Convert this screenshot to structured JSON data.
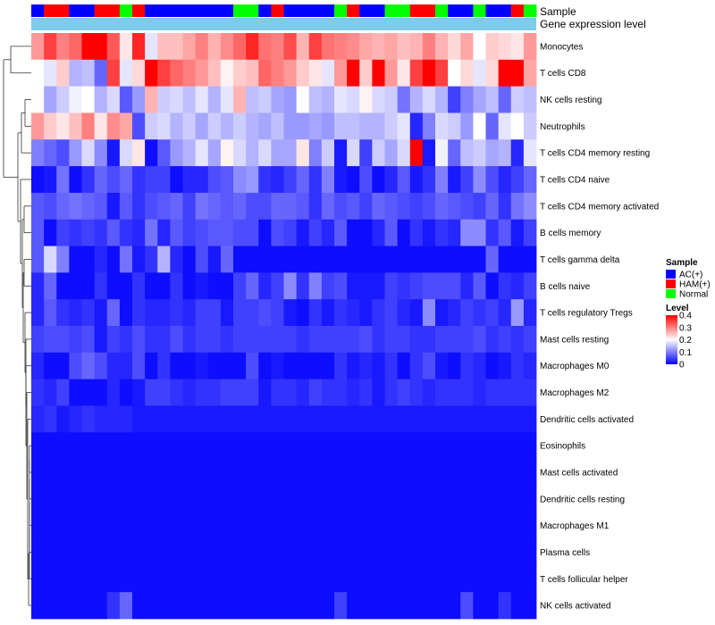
{
  "chart_data": {
    "type": "heatmap",
    "annotation_tracks": [
      "Sample",
      "Gene expression level"
    ],
    "sample_groups": [
      "A",
      "H",
      "H",
      "A",
      "A",
      "H",
      "H",
      "N",
      "H",
      "A",
      "A",
      "A",
      "A",
      "A",
      "A",
      "A",
      "N",
      "N",
      "A",
      "H",
      "A",
      "A",
      "A",
      "A",
      "N",
      "H",
      "A",
      "A",
      "N",
      "N",
      "H",
      "H",
      "N",
      "A",
      "A",
      "N",
      "A",
      "A",
      "H",
      "N"
    ],
    "gene_expression_color": "#7ecbec",
    "rows": [
      "Monocytes",
      "T cells CD8",
      "NK cells resting",
      "Neutrophils",
      "T cells CD4 memory resting",
      "T cells CD4 naive",
      "T cells CD4 memory activated",
      "B cells memory",
      "T cells gamma delta",
      "B cells naive",
      "T cells regulatory  Tregs",
      "Mast cells resting",
      "Macrophages M0",
      "Macrophages M2",
      "Dendritic cells activated",
      "Eosinophils",
      "Mast cells activated",
      "Dendritic cells resting",
      "Macrophages M1",
      "Plasma cells",
      "T cells follicular helper",
      "NK cells activated"
    ],
    "values": [
      [
        0.28,
        0.35,
        0.3,
        0.32,
        0.4,
        0.4,
        0.33,
        0.22,
        0.37,
        0.18,
        0.25,
        0.25,
        0.27,
        0.3,
        0.26,
        0.29,
        0.32,
        0.37,
        0.31,
        0.3,
        0.34,
        0.26,
        0.35,
        0.31,
        0.3,
        0.29,
        0.27,
        0.26,
        0.27,
        0.25,
        0.26,
        0.3,
        0.26,
        0.23,
        0.27,
        0.2,
        0.24,
        0.23,
        0.22,
        0.28
      ],
      [
        0.2,
        0.18,
        0.24,
        0.14,
        0.15,
        0.08,
        0.35,
        0.18,
        0.23,
        0.4,
        0.35,
        0.32,
        0.3,
        0.28,
        0.25,
        0.21,
        0.24,
        0.25,
        0.32,
        0.3,
        0.28,
        0.24,
        0.22,
        0.18,
        0.28,
        0.4,
        0.24,
        0.4,
        0.28,
        0.22,
        0.35,
        0.4,
        0.35,
        0.2,
        0.23,
        0.18,
        0.23,
        0.4,
        0.4,
        0.27
      ],
      [
        0.2,
        0.13,
        0.16,
        0.19,
        0.2,
        0.14,
        0.17,
        0.07,
        0.12,
        0.26,
        0.16,
        0.17,
        0.15,
        0.18,
        0.14,
        0.18,
        0.26,
        0.15,
        0.16,
        0.13,
        0.12,
        0.2,
        0.15,
        0.14,
        0.18,
        0.17,
        0.21,
        0.17,
        0.16,
        0.09,
        0.14,
        0.17,
        0.14,
        0.05,
        0.1,
        0.13,
        0.15,
        0.08,
        0.16,
        0.15
      ],
      [
        0.28,
        0.24,
        0.22,
        0.25,
        0.3,
        0.22,
        0.29,
        0.27,
        0.06,
        0.16,
        0.17,
        0.14,
        0.16,
        0.13,
        0.16,
        0.14,
        0.16,
        0.14,
        0.13,
        0.15,
        0.12,
        0.12,
        0.13,
        0.12,
        0.15,
        0.15,
        0.14,
        0.14,
        0.16,
        0.18,
        0.03,
        0.1,
        0.17,
        0.16,
        0.12,
        0.2,
        0.08,
        0.18,
        0.2,
        0.16
      ],
      [
        0.1,
        0.08,
        0.06,
        0.12,
        0.17,
        0.11,
        0.02,
        0.17,
        0.22,
        0.01,
        0.07,
        0.12,
        0.14,
        0.18,
        0.13,
        0.21,
        0.17,
        0.14,
        0.17,
        0.13,
        0.13,
        0.22,
        0.1,
        0.16,
        0.02,
        0.17,
        0.05,
        0.16,
        0.13,
        0.17,
        0.4,
        0.02,
        0.19,
        0.08,
        0.15,
        0.16,
        0.13,
        0.14,
        0.03,
        0.18
      ],
      [
        0.01,
        0.02,
        0.09,
        0.01,
        0.04,
        0.08,
        0.06,
        0.08,
        0.04,
        0.05,
        0.05,
        0.01,
        0.03,
        0.03,
        0.06,
        0.07,
        0.11,
        0.12,
        0.04,
        0.03,
        0.05,
        0.08,
        0.04,
        0.1,
        0.02,
        0.01,
        0.06,
        0.01,
        0.03,
        0.07,
        0.02,
        0.04,
        0.1,
        0.02,
        0.05,
        0.11,
        0.06,
        0.03,
        0.05,
        0.08
      ],
      [
        0.07,
        0.06,
        0.08,
        0.09,
        0.08,
        0.07,
        0.02,
        0.07,
        0.04,
        0.06,
        0.07,
        0.08,
        0.05,
        0.09,
        0.08,
        0.07,
        0.08,
        0.06,
        0.06,
        0.08,
        0.08,
        0.07,
        0.04,
        0.08,
        0.06,
        0.07,
        0.05,
        0.08,
        0.07,
        0.06,
        0.05,
        0.06,
        0.08,
        0.07,
        0.06,
        0.05,
        0.08,
        0.04,
        0.09,
        0.11
      ],
      [
        0.07,
        0.01,
        0.05,
        0.04,
        0.05,
        0.04,
        0.07,
        0.04,
        0.03,
        0.09,
        0.03,
        0.07,
        0.05,
        0.06,
        0.07,
        0.07,
        0.06,
        0.06,
        0.01,
        0.06,
        0.05,
        0.02,
        0.05,
        0.03,
        0.07,
        0.01,
        0.01,
        0.03,
        0.07,
        0.01,
        0.04,
        0.02,
        0.04,
        0.03,
        0.11,
        0.11,
        0.04,
        0.07,
        0.02,
        0.05
      ],
      [
        0.07,
        0.17,
        0.1,
        0.01,
        0.01,
        0.03,
        0.01,
        0.09,
        0.02,
        0.04,
        0.14,
        0.03,
        0.01,
        0.06,
        0.02,
        0.08,
        0.01,
        0.01,
        0.01,
        0.01,
        0.01,
        0.01,
        0.01,
        0.01,
        0.01,
        0.01,
        0.01,
        0.01,
        0.01,
        0.01,
        0.01,
        0.01,
        0.01,
        0.01,
        0.01,
        0.01,
        0.08,
        0.01,
        0.01,
        0.01
      ],
      [
        0.03,
        0.08,
        0.01,
        0.01,
        0.01,
        0.04,
        0.01,
        0.01,
        0.04,
        0.01,
        0.01,
        0.04,
        0.01,
        0.02,
        0.01,
        0.01,
        0.05,
        0.08,
        0.03,
        0.05,
        0.11,
        0.04,
        0.1,
        0.05,
        0.06,
        0.02,
        0.02,
        0.02,
        0.05,
        0.04,
        0.05,
        0.06,
        0.06,
        0.06,
        0.03,
        0.07,
        0.01,
        0.04,
        0.03,
        0.05
      ],
      [
        0.03,
        0.07,
        0.04,
        0.03,
        0.04,
        0.02,
        0.08,
        0.01,
        0.04,
        0.03,
        0.03,
        0.04,
        0.03,
        0.05,
        0.05,
        0.02,
        0.05,
        0.05,
        0.06,
        0.05,
        0.02,
        0.01,
        0.04,
        0.02,
        0.04,
        0.03,
        0.02,
        0.04,
        0.05,
        0.03,
        0.02,
        0.11,
        0.02,
        0.03,
        0.05,
        0.04,
        0.05,
        0.03,
        0.12,
        0.03
      ],
      [
        0.05,
        0.06,
        0.06,
        0.05,
        0.06,
        0.02,
        0.05,
        0.04,
        0.06,
        0.04,
        0.04,
        0.06,
        0.04,
        0.05,
        0.05,
        0.04,
        0.05,
        0.05,
        0.05,
        0.05,
        0.05,
        0.04,
        0.05,
        0.05,
        0.05,
        0.05,
        0.06,
        0.04,
        0.05,
        0.05,
        0.04,
        0.04,
        0.05,
        0.05,
        0.05,
        0.06,
        0.04,
        0.05,
        0.04,
        0.05
      ],
      [
        0.03,
        0.01,
        0.01,
        0.06,
        0.08,
        0.06,
        0.03,
        0.03,
        0.06,
        0.01,
        0.04,
        0.01,
        0.01,
        0.02,
        0.01,
        0.01,
        0.01,
        0.06,
        0.01,
        0.02,
        0.01,
        0.01,
        0.01,
        0.01,
        0.04,
        0.02,
        0.03,
        0.02,
        0.04,
        0.01,
        0.04,
        0.06,
        0.02,
        0.01,
        0.04,
        0.03,
        0.01,
        0.02,
        0.04,
        0.03
      ],
      [
        0.04,
        0.03,
        0.05,
        0.01,
        0.01,
        0.01,
        0.03,
        0.01,
        0.02,
        0.05,
        0.05,
        0.04,
        0.03,
        0.04,
        0.04,
        0.05,
        0.05,
        0.05,
        0.02,
        0.04,
        0.04,
        0.03,
        0.05,
        0.04,
        0.04,
        0.03,
        0.04,
        0.02,
        0.04,
        0.05,
        0.04,
        0.03,
        0.04,
        0.04,
        0.04,
        0.03,
        0.04,
        0.04,
        0.04,
        0.04
      ],
      [
        0.03,
        0.04,
        0.02,
        0.03,
        0.04,
        0.03,
        0.03,
        0.03,
        0.02,
        0.02,
        0.02,
        0.02,
        0.02,
        0.02,
        0.02,
        0.02,
        0.02,
        0.02,
        0.02,
        0.02,
        0.02,
        0.02,
        0.02,
        0.02,
        0.02,
        0.02,
        0.02,
        0.02,
        0.02,
        0.02,
        0.02,
        0.02,
        0.02,
        0.02,
        0.02,
        0.02,
        0.02,
        0.02,
        0.02,
        0.02
      ],
      [
        0.01,
        0.01,
        0.01,
        0.01,
        0.01,
        0.01,
        0.01,
        0.01,
        0.01,
        0.01,
        0.01,
        0.01,
        0.01,
        0.01,
        0.01,
        0.01,
        0.01,
        0.01,
        0.01,
        0.01,
        0.01,
        0.01,
        0.01,
        0.01,
        0.01,
        0.01,
        0.01,
        0.01,
        0.01,
        0.01,
        0.01,
        0.01,
        0.01,
        0.01,
        0.01,
        0.01,
        0.01,
        0.01,
        0.01,
        0.01
      ],
      [
        0.01,
        0.01,
        0.01,
        0.01,
        0.01,
        0.01,
        0.01,
        0.01,
        0.01,
        0.01,
        0.01,
        0.01,
        0.01,
        0.01,
        0.01,
        0.01,
        0.01,
        0.01,
        0.01,
        0.01,
        0.01,
        0.01,
        0.01,
        0.01,
        0.01,
        0.01,
        0.01,
        0.01,
        0.01,
        0.01,
        0.01,
        0.01,
        0.01,
        0.01,
        0.01,
        0.01,
        0.01,
        0.01,
        0.01,
        0.01
      ],
      [
        0.01,
        0.01,
        0.01,
        0.01,
        0.01,
        0.01,
        0.01,
        0.01,
        0.01,
        0.01,
        0.01,
        0.01,
        0.01,
        0.01,
        0.01,
        0.01,
        0.01,
        0.01,
        0.01,
        0.01,
        0.01,
        0.01,
        0.01,
        0.01,
        0.01,
        0.01,
        0.01,
        0.01,
        0.01,
        0.01,
        0.01,
        0.01,
        0.01,
        0.01,
        0.01,
        0.01,
        0.01,
        0.01,
        0.01,
        0.01
      ],
      [
        0.01,
        0.01,
        0.01,
        0.01,
        0.01,
        0.01,
        0.01,
        0.01,
        0.01,
        0.01,
        0.01,
        0.01,
        0.01,
        0.01,
        0.01,
        0.01,
        0.01,
        0.01,
        0.01,
        0.01,
        0.01,
        0.01,
        0.01,
        0.01,
        0.01,
        0.01,
        0.01,
        0.01,
        0.01,
        0.01,
        0.01,
        0.01,
        0.01,
        0.01,
        0.01,
        0.01,
        0.01,
        0.01,
        0.01,
        0.01
      ],
      [
        0.01,
        0.01,
        0.01,
        0.01,
        0.01,
        0.01,
        0.01,
        0.01,
        0.01,
        0.01,
        0.01,
        0.01,
        0.01,
        0.01,
        0.01,
        0.01,
        0.01,
        0.01,
        0.01,
        0.01,
        0.01,
        0.01,
        0.01,
        0.01,
        0.01,
        0.01,
        0.01,
        0.01,
        0.01,
        0.01,
        0.01,
        0.01,
        0.01,
        0.01,
        0.01,
        0.01,
        0.01,
        0.01,
        0.01,
        0.01
      ],
      [
        0.01,
        0.01,
        0.01,
        0.01,
        0.01,
        0.01,
        0.01,
        0.01,
        0.01,
        0.01,
        0.01,
        0.01,
        0.01,
        0.01,
        0.01,
        0.01,
        0.01,
        0.01,
        0.01,
        0.01,
        0.01,
        0.01,
        0.01,
        0.01,
        0.01,
        0.01,
        0.01,
        0.01,
        0.01,
        0.01,
        0.01,
        0.01,
        0.01,
        0.01,
        0.01,
        0.01,
        0.01,
        0.01,
        0.01,
        0.01
      ],
      [
        0.01,
        0.01,
        0.01,
        0.01,
        0.01,
        0.01,
        0.04,
        0.08,
        0.01,
        0.01,
        0.01,
        0.01,
        0.01,
        0.01,
        0.01,
        0.01,
        0.01,
        0.01,
        0.01,
        0.01,
        0.01,
        0.01,
        0.01,
        0.01,
        0.05,
        0.01,
        0.01,
        0.01,
        0.01,
        0.01,
        0.01,
        0.01,
        0.01,
        0.01,
        0.06,
        0.01,
        0.01,
        0.04,
        0.01,
        0.01
      ]
    ],
    "legend_sample": {
      "title": "Sample",
      "items": [
        {
          "key": "A",
          "label": "AC(+)",
          "color": "#0000ff"
        },
        {
          "key": "H",
          "label": "HAM(+)",
          "color": "#ff0000"
        },
        {
          "key": "N",
          "label": "Normal",
          "color": "#00ff00"
        }
      ]
    },
    "legend_level": {
      "title": "Level",
      "range": [
        0,
        0.4
      ],
      "ticks": [
        0.4,
        0.3,
        0.2,
        0.1,
        0
      ],
      "tick_labels": [
        "0.4",
        "0.3",
        "0.2",
        "0.1",
        "0"
      ],
      "colors": [
        "#0000ff",
        "#ffffff",
        "#ff0000"
      ]
    },
    "dendrogram_order": [
      "Monocytes",
      "T cells CD8",
      "NK cells resting",
      "Neutrophils",
      "T cells CD4 memory resting",
      "T cells CD4 naive",
      "T cells CD4 memory activated",
      "B cells memory",
      "T cells gamma delta",
      "B cells naive",
      "T cells regulatory  Tregs",
      "Mast cells resting",
      "Macrophages M0",
      "Macrophages M2",
      "Dendritic cells activated",
      "Eosinophils",
      "Mast cells activated",
      "Dendritic cells resting",
      "Macrophages M1",
      "Plasma cells",
      "T cells follicular helper",
      "NK cells activated"
    ]
  }
}
